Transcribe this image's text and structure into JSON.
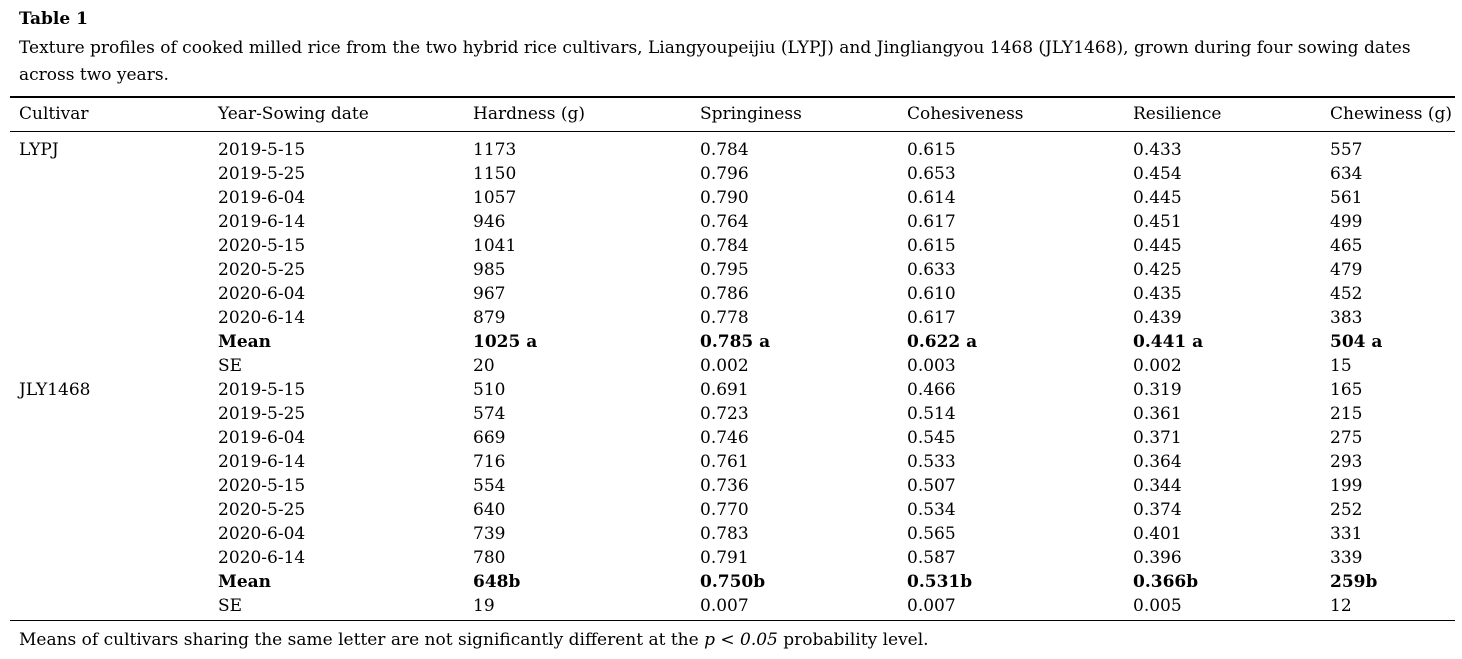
{
  "page": {
    "title": "Table 1",
    "caption": "Texture profiles of cooked milled rice from the two hybrid rice cultivars, Liangyoupeijiu (LYPJ) and Jingliangyou 1468 (JLY1468), grown during four sowing dates across two years.",
    "footnote": {
      "pre": "Means of cultivars sharing the same letter are not significantly different at the ",
      "italic": "p < 0.05",
      "post": " probability level."
    }
  },
  "colors": {
    "text": "#000000",
    "rule": "#000000",
    "background": "#ffffff"
  },
  "table": {
    "columns": [
      "Cultivar",
      "Year-Sowing date",
      "Hardness (g)",
      "Springiness",
      "Cohesiveness",
      "Resilience",
      "Chewiness (g)"
    ],
    "rows": [
      {
        "cells": [
          "LYPJ",
          "2019-5-15",
          "1173",
          "0.784",
          "0.615",
          "0.433",
          "557"
        ],
        "bold": false
      },
      {
        "cells": [
          "",
          "2019-5-25",
          "1150",
          "0.796",
          "0.653",
          "0.454",
          "634"
        ],
        "bold": false
      },
      {
        "cells": [
          "",
          "2019-6-04",
          "1057",
          "0.790",
          "0.614",
          "0.445",
          "561"
        ],
        "bold": false
      },
      {
        "cells": [
          "",
          "2019-6-14",
          "946",
          "0.764",
          "0.617",
          "0.451",
          "499"
        ],
        "bold": false
      },
      {
        "cells": [
          "",
          "2020-5-15",
          "1041",
          "0.784",
          "0.615",
          "0.445",
          "465"
        ],
        "bold": false
      },
      {
        "cells": [
          "",
          "2020-5-25",
          "985",
          "0.795",
          "0.633",
          "0.425",
          "479"
        ],
        "bold": false
      },
      {
        "cells": [
          "",
          "2020-6-04",
          "967",
          "0.786",
          "0.610",
          "0.435",
          "452"
        ],
        "bold": false
      },
      {
        "cells": [
          "",
          "2020-6-14",
          "879",
          "0.778",
          "0.617",
          "0.439",
          "383"
        ],
        "bold": false
      },
      {
        "cells": [
          "",
          "Mean",
          "1025 a",
          "0.785 a",
          "0.622 a",
          "0.441 a",
          "504 a"
        ],
        "bold": true
      },
      {
        "cells": [
          "",
          "SE",
          "20",
          "0.002",
          "0.003",
          "0.002",
          "15"
        ],
        "bold": false
      },
      {
        "cells": [
          "JLY1468",
          "2019-5-15",
          "510",
          "0.691",
          "0.466",
          "0.319",
          "165"
        ],
        "bold": false
      },
      {
        "cells": [
          "",
          "2019-5-25",
          "574",
          "0.723",
          "0.514",
          "0.361",
          "215"
        ],
        "bold": false
      },
      {
        "cells": [
          "",
          "2019-6-04",
          "669",
          "0.746",
          "0.545",
          "0.371",
          "275"
        ],
        "bold": false
      },
      {
        "cells": [
          "",
          "2019-6-14",
          "716",
          "0.761",
          "0.533",
          "0.364",
          "293"
        ],
        "bold": false
      },
      {
        "cells": [
          "",
          "2020-5-15",
          "554",
          "0.736",
          "0.507",
          "0.344",
          "199"
        ],
        "bold": false
      },
      {
        "cells": [
          "",
          "2020-5-25",
          "640",
          "0.770",
          "0.534",
          "0.374",
          "252"
        ],
        "bold": false
      },
      {
        "cells": [
          "",
          "2020-6-04",
          "739",
          "0.783",
          "0.565",
          "0.401",
          "331"
        ],
        "bold": false
      },
      {
        "cells": [
          "",
          "2020-6-14",
          "780",
          "0.791",
          "0.587",
          "0.396",
          "339"
        ],
        "bold": false
      },
      {
        "cells": [
          "",
          "Mean",
          "648b",
          "0.750b",
          "0.531b",
          "0.366b",
          "259b"
        ],
        "bold": true
      },
      {
        "cells": [
          "",
          "SE",
          "19",
          "0.007",
          "0.007",
          "0.005",
          "12"
        ],
        "bold": false
      }
    ]
  }
}
